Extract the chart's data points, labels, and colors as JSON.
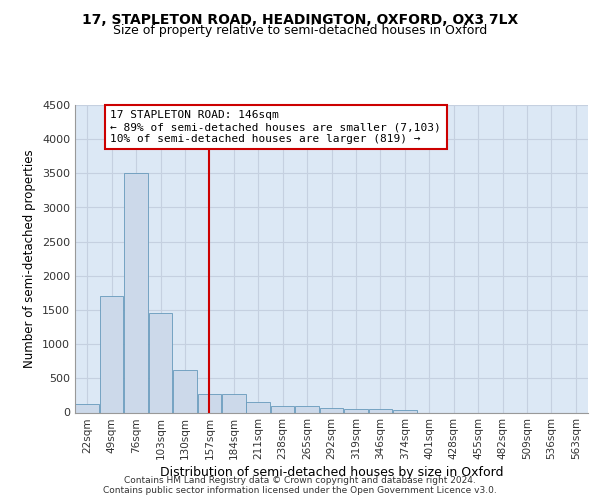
{
  "title_line1": "17, STAPLETON ROAD, HEADINGTON, OXFORD, OX3 7LX",
  "title_line2": "Size of property relative to semi-detached houses in Oxford",
  "xlabel": "Distribution of semi-detached houses by size in Oxford",
  "ylabel": "Number of semi-detached properties",
  "bin_labels": [
    "22sqm",
    "49sqm",
    "76sqm",
    "103sqm",
    "130sqm",
    "157sqm",
    "184sqm",
    "211sqm",
    "238sqm",
    "265sqm",
    "292sqm",
    "319sqm",
    "346sqm",
    "374sqm",
    "401sqm",
    "428sqm",
    "455sqm",
    "482sqm",
    "509sqm",
    "536sqm",
    "563sqm"
  ],
  "bar_values": [
    120,
    1700,
    3500,
    1450,
    620,
    270,
    270,
    160,
    100,
    100,
    60,
    50,
    50,
    40,
    0,
    0,
    0,
    0,
    0,
    0,
    0
  ],
  "bar_color": "#ccd9ea",
  "bar_edge_color": "#6699bb",
  "grid_color": "#c5d0e0",
  "property_line_x": 5.0,
  "annotation_text": "17 STAPLETON ROAD: 146sqm\n← 89% of semi-detached houses are smaller (7,103)\n10% of semi-detached houses are larger (819) →",
  "annotation_box_color": "#ffffff",
  "annotation_box_edge_color": "#cc0000",
  "red_line_color": "#cc0000",
  "ylim": [
    0,
    4500
  ],
  "yticks": [
    0,
    500,
    1000,
    1500,
    2000,
    2500,
    3000,
    3500,
    4000,
    4500
  ],
  "footnote": "Contains HM Land Registry data © Crown copyright and database right 2024.\nContains public sector information licensed under the Open Government Licence v3.0.",
  "background_color": "#dce8f5"
}
